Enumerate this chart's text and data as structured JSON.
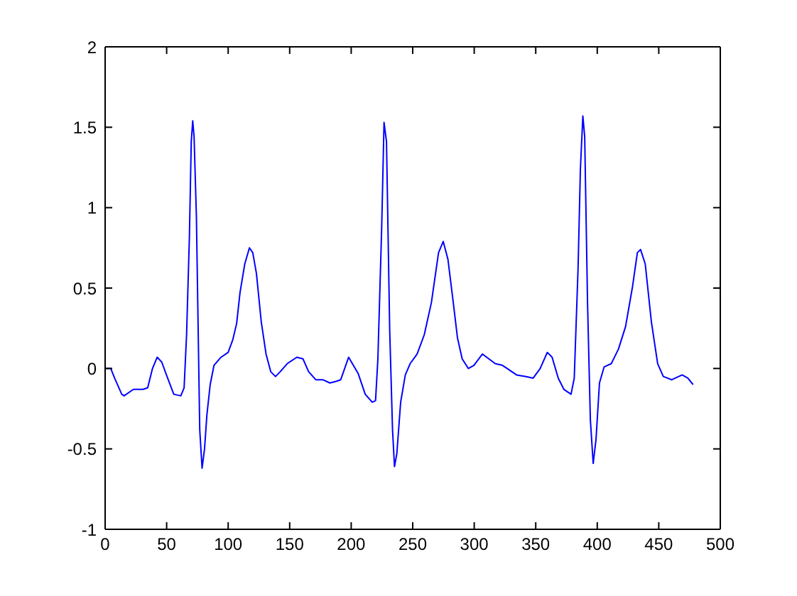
{
  "chart_data": {
    "type": "line",
    "x": [
      0,
      4.6,
      7.7,
      13.5,
      15.4,
      23,
      30.8,
      34.6,
      38.5,
      42.3,
      46,
      50.8,
      55.8,
      61.5,
      64.2,
      66.2,
      68.5,
      70,
      71.2,
      72.3,
      74.2,
      75.4,
      76.9,
      78.8,
      80.8,
      82.7,
      85.4,
      88.5,
      94.2,
      100,
      103.8,
      106.9,
      109.6,
      113.5,
      117.3,
      120,
      123,
      126.9,
      130.8,
      134.6,
      138.5,
      142.3,
      148,
      155.8,
      160.8,
      165.4,
      171.2,
      176.9,
      182.7,
      187.7,
      191.5,
      197.9,
      205.6,
      211.4,
      217.1,
      219.8,
      221.7,
      224.8,
      226.7,
      228.7,
      231.3,
      233.6,
      235.2,
      237.1,
      240.2,
      244,
      247.9,
      253.6,
      259.4,
      265.2,
      271,
      274.8,
      278.6,
      282.5,
      286.4,
      290.2,
      295.2,
      299.8,
      306.7,
      317.1,
      322.8,
      326.8,
      334.4,
      342.1,
      347.9,
      353.6,
      359.4,
      363.3,
      368.3,
      372.9,
      378.7,
      381.3,
      384.4,
      386.3,
      388.3,
      389.8,
      392.1,
      394.4,
      396.7,
      399,
      401.8,
      405.6,
      411.4,
      417.2,
      423,
      428.7,
      432.6,
      435.2,
      439,
      444,
      449.1,
      453.7,
      460.6,
      469,
      473.6,
      477.9
    ],
    "series": [
      {
        "color": "#0000ff",
        "values": [
          0,
          0,
          -0.06,
          -0.16,
          -0.17,
          -0.13,
          -0.13,
          -0.12,
          0,
          0.07,
          0.04,
          -0.06,
          -0.16,
          -0.17,
          -0.12,
          0.21,
          0.82,
          1.41,
          1.54,
          1.44,
          0.94,
          0.35,
          -0.38,
          -0.62,
          -0.5,
          -0.29,
          -0.1,
          0.02,
          0.07,
          0.1,
          0.18,
          0.28,
          0.47,
          0.65,
          0.75,
          0.72,
          0.59,
          0.29,
          0.09,
          -0.02,
          -0.05,
          -0.02,
          0.03,
          0.07,
          0.06,
          -0.02,
          -0.07,
          -0.07,
          -0.09,
          -0.08,
          -0.07,
          0.07,
          -0.03,
          -0.16,
          -0.21,
          -0.2,
          0.06,
          0.88,
          1.53,
          1.41,
          0.24,
          -0.38,
          -0.61,
          -0.53,
          -0.21,
          -0.04,
          0.03,
          0.09,
          0.21,
          0.41,
          0.72,
          0.79,
          0.68,
          0.44,
          0.19,
          0.06,
          0,
          0.02,
          0.09,
          0.03,
          0.02,
          0,
          -0.04,
          -0.05,
          -0.06,
          0,
          0.1,
          0.07,
          -0.06,
          -0.13,
          -0.16,
          -0.06,
          0.62,
          1.24,
          1.57,
          1.44,
          0.41,
          -0.32,
          -0.59,
          -0.44,
          -0.09,
          0.01,
          0.03,
          0.12,
          0.26,
          0.51,
          0.72,
          0.74,
          0.65,
          0.29,
          0.03,
          -0.05,
          -0.07,
          -0.04,
          -0.06,
          -0.1
        ]
      }
    ],
    "xlim": [
      0,
      500
    ],
    "xticks": [
      0,
      50,
      100,
      150,
      200,
      250,
      300,
      350,
      400,
      450,
      500
    ],
    "ylim": [
      -1,
      2
    ],
    "yticks": [
      -1,
      -0.5,
      0,
      0.5,
      1,
      1.5,
      2
    ],
    "line_style": "solid"
  }
}
